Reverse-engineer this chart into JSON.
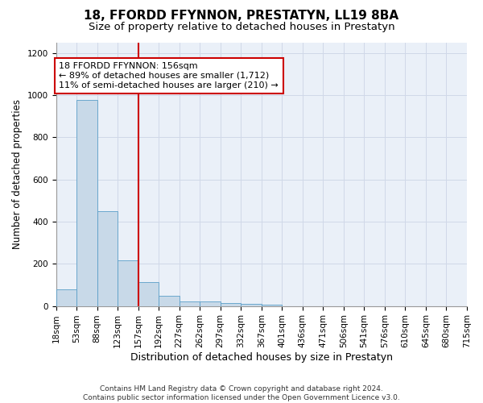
{
  "title": "18, FFORDD FFYNNON, PRESTATYN, LL19 8BA",
  "subtitle": "Size of property relative to detached houses in Prestatyn",
  "xlabel": "Distribution of detached houses by size in Prestatyn",
  "ylabel": "Number of detached properties",
  "bin_labels": [
    "18sqm",
    "53sqm",
    "88sqm",
    "123sqm",
    "157sqm",
    "192sqm",
    "227sqm",
    "262sqm",
    "297sqm",
    "332sqm",
    "367sqm",
    "401sqm",
    "436sqm",
    "471sqm",
    "506sqm",
    "541sqm",
    "576sqm",
    "610sqm",
    "645sqm",
    "680sqm",
    "715sqm"
  ],
  "bar_values": [
    80,
    975,
    450,
    215,
    115,
    47,
    23,
    20,
    15,
    10,
    8,
    0,
    0,
    0,
    0,
    0,
    0,
    0,
    0,
    0
  ],
  "bar_color": "#c8d9e8",
  "bar_edge_color": "#5a9ec8",
  "vline_x_index": 4,
  "vline_color": "#cc0000",
  "annotation_line1": "18 FFORDD FFYNNON: 156sqm",
  "annotation_line2": "← 89% of detached houses are smaller (1,712)",
  "annotation_line3": "11% of semi-detached houses are larger (210) →",
  "annotation_box_color": "#ffffff",
  "annotation_box_edge": "#cc0000",
  "ylim": [
    0,
    1250
  ],
  "yticks": [
    0,
    200,
    400,
    600,
    800,
    1000,
    1200
  ],
  "grid_color": "#d0d8e8",
  "bg_color": "#eaf0f8",
  "footer": "Contains HM Land Registry data © Crown copyright and database right 2024.\nContains public sector information licensed under the Open Government Licence v3.0.",
  "title_fontsize": 11,
  "subtitle_fontsize": 9.5,
  "xlabel_fontsize": 9,
  "ylabel_fontsize": 8.5,
  "tick_fontsize": 7.5,
  "annotation_fontsize": 8,
  "footer_fontsize": 6.5
}
